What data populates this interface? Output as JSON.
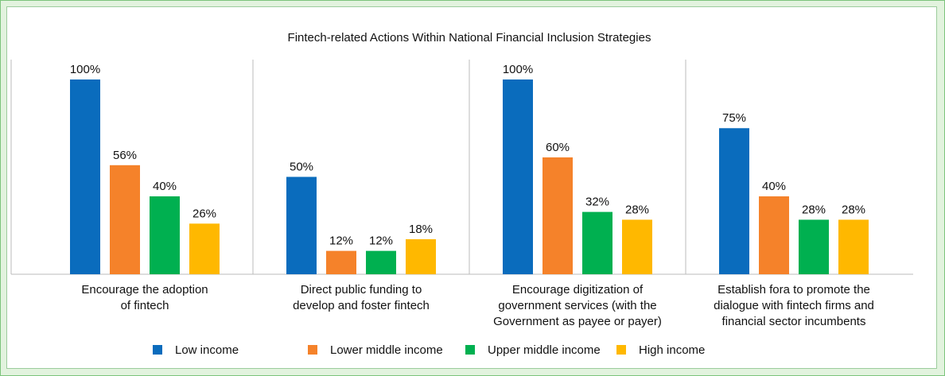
{
  "chart_data": {
    "type": "bar",
    "title": "Fintech-related Actions Within National Financial Inclusion Strategies",
    "categories": [
      "Encourage the adoption\nof fintech",
      "Direct public funding to\ndevelop and foster fintech",
      "Encourage digitization of\ngovernment services (with the\nGovernment as payee or payer)",
      "Establish fora to promote the\ndialogue with fintech firms and\nfinancial sector incumbents"
    ],
    "series": [
      {
        "name": "Low income",
        "color": "#0a6cbd",
        "values": [
          100,
          50,
          100,
          75
        ],
        "value_labels": [
          "100%",
          "50%",
          "100%",
          "75%"
        ]
      },
      {
        "name": "Lower middle income",
        "color": "#f5822a",
        "values": [
          56,
          12,
          60,
          40
        ],
        "value_labels": [
          "56%",
          "12%",
          "60%",
          "40%"
        ]
      },
      {
        "name": "Upper middle income",
        "color": "#00b050",
        "values": [
          40,
          12,
          32,
          28
        ],
        "value_labels": [
          "40%",
          "12%",
          "32%",
          "28%"
        ]
      },
      {
        "name": "High income",
        "color": "#ffb800",
        "values": [
          26,
          18,
          28,
          28
        ],
        "value_labels": [
          "26%",
          "18%",
          "28%",
          "28%"
        ]
      }
    ],
    "ylim": [
      0,
      100
    ],
    "legend": "bottom"
  }
}
